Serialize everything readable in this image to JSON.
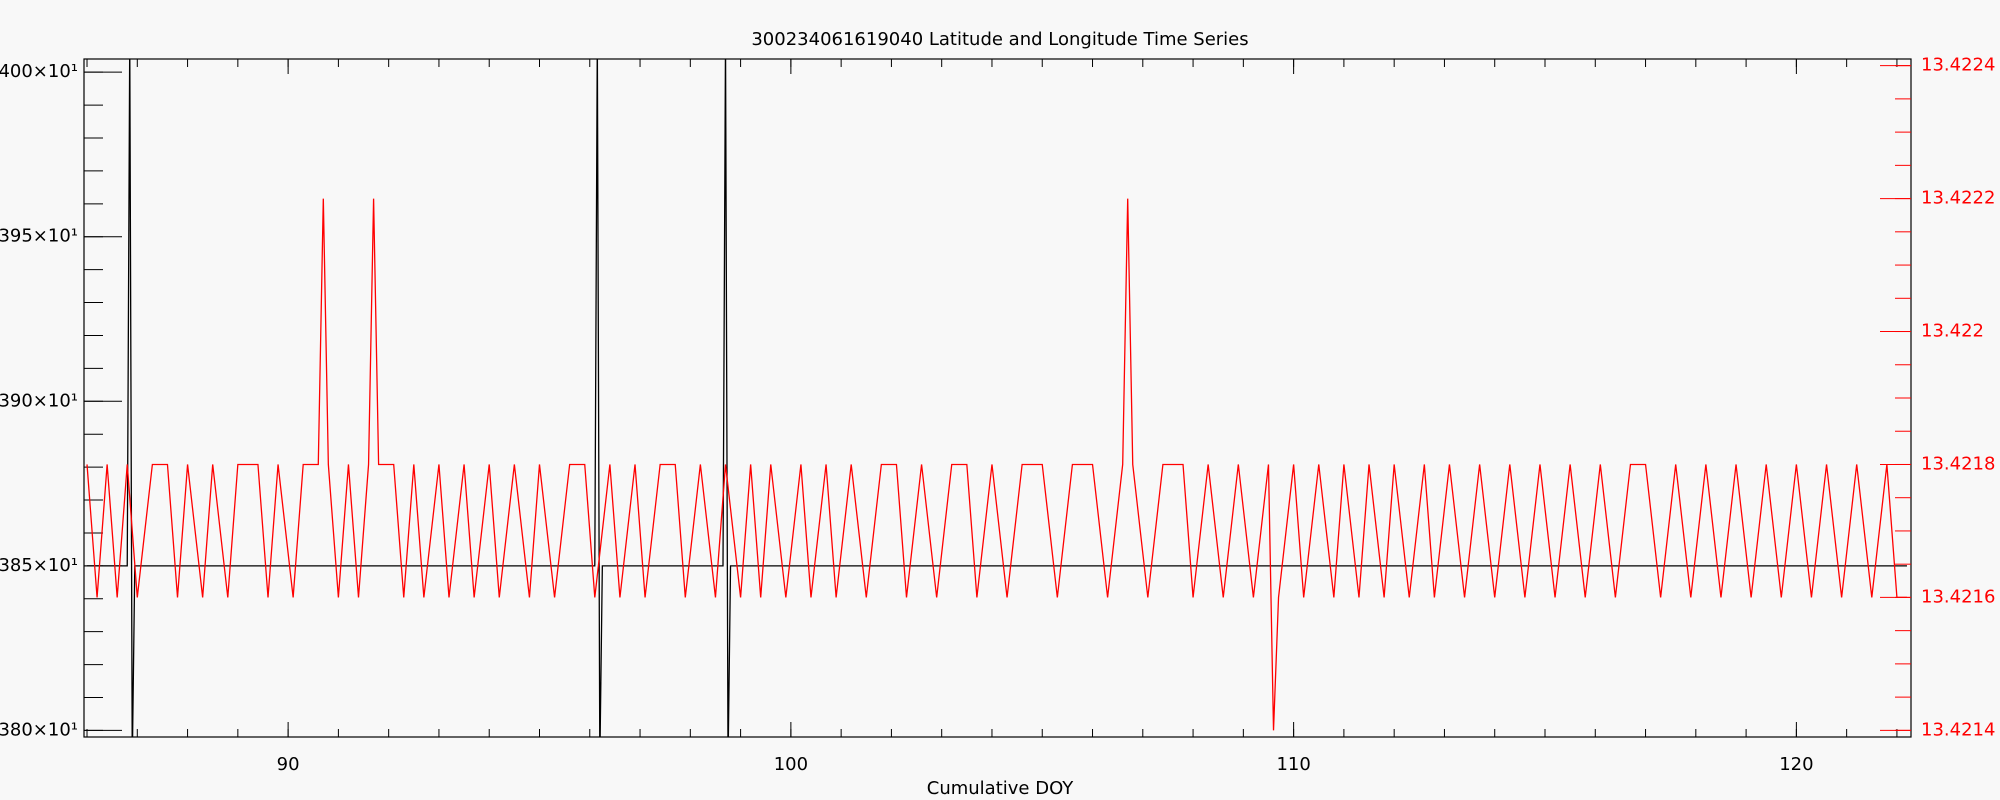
{
  "chart_data": {
    "type": "line",
    "title": "300234061619040 Latitude and Longitude Time Series",
    "x_label": "Cumulative DOY",
    "xlim": [
      85.94,
      122.28
    ],
    "xticks": [
      90,
      100,
      110,
      120
    ],
    "ylim": [
      3798,
      4004
    ],
    "yticks": [
      {
        "value": 4000,
        "label": "400×10¹"
      },
      {
        "value": 3950,
        "label": "395×10¹"
      },
      {
        "value": 3900,
        "label": "390×10¹"
      },
      {
        "value": 3850,
        "label": "385×10¹"
      },
      {
        "value": 3800,
        "label": "380×10¹"
      }
    ],
    "y2lim": [
      13.42139,
      13.42241
    ],
    "y2ticks": [
      13.4224,
      13.4222,
      13.422,
      13.4218,
      13.4216,
      13.4214
    ],
    "y2_color": "#ff0000",
    "series": [
      {
        "color": "#000000",
        "x": [
          86.0,
          86.8,
          86.85,
          86.9,
          86.95,
          96.1,
          96.15,
          96.2,
          96.25,
          98.65,
          98.7,
          98.75,
          98.8,
          122.2
        ],
        "values": [
          3850,
          3850,
          4010,
          3790,
          3850,
          3850,
          4010,
          3790,
          3850,
          3850,
          4010,
          3790,
          3850,
          3850
        ]
      },
      {
        "color": "#ff0000",
        "axis": "y2",
        "x": [
          86.0,
          86.2,
          86.4,
          86.6,
          86.8,
          87.0,
          87.3,
          87.6,
          87.8,
          88.0,
          88.3,
          88.5,
          88.8,
          89.0,
          89.4,
          89.6,
          89.8,
          90.1,
          90.3,
          90.6,
          90.7,
          90.8,
          91.0,
          91.2,
          91.4,
          91.6,
          91.7,
          91.8,
          92.1,
          92.3,
          92.5,
          92.7,
          93.0,
          93.2,
          93.5,
          93.7,
          94.0,
          94.2,
          94.5,
          94.8,
          95.0,
          95.3,
          95.6,
          95.9,
          96.1,
          96.4,
          96.6,
          96.9,
          97.1,
          97.4,
          97.7,
          97.9,
          98.2,
          98.5,
          98.7,
          99.0,
          99.2,
          99.4,
          99.6,
          99.9,
          100.2,
          100.4,
          100.7,
          100.9,
          101.2,
          101.5,
          101.8,
          102.1,
          102.3,
          102.6,
          102.9,
          103.2,
          103.5,
          103.7,
          104.0,
          104.3,
          104.6,
          105.0,
          105.3,
          105.6,
          106.0,
          106.3,
          106.6,
          106.7,
          106.8,
          107.1,
          107.4,
          107.8,
          108.0,
          108.3,
          108.6,
          108.9,
          109.2,
          109.5,
          109.6,
          109.7,
          110.0,
          110.2,
          110.5,
          110.8,
          111.0,
          111.3,
          111.5,
          111.8,
          112.0,
          112.3,
          112.6,
          112.8,
          113.1,
          113.4,
          113.7,
          114.0,
          114.3,
          114.6,
          114.9,
          115.2,
          115.5,
          115.8,
          116.1,
          116.4,
          116.7,
          117.0,
          117.3,
          117.6,
          117.9,
          118.2,
          118.5,
          118.8,
          119.1,
          119.4,
          119.7,
          120.0,
          120.3,
          120.6,
          120.9,
          121.2,
          121.5,
          121.8,
          122.0,
          122.2
        ],
        "values": [
          13.4218,
          13.4216,
          13.4218,
          13.4216,
          13.4218,
          13.4216,
          13.4218,
          13.4218,
          13.4216,
          13.4218,
          13.4216,
          13.4218,
          13.4216,
          13.4218,
          13.4218,
          13.4216,
          13.4218,
          13.4216,
          13.4218,
          13.4218,
          13.4222,
          13.4218,
          13.4216,
          13.4218,
          13.4216,
          13.4218,
          13.4222,
          13.4218,
          13.4218,
          13.4216,
          13.4218,
          13.4216,
          13.4218,
          13.4216,
          13.4218,
          13.4216,
          13.4218,
          13.4216,
          13.4218,
          13.4216,
          13.4218,
          13.4216,
          13.4218,
          13.4218,
          13.4216,
          13.4218,
          13.4216,
          13.4218,
          13.4216,
          13.4218,
          13.4218,
          13.4216,
          13.4218,
          13.4216,
          13.4218,
          13.4216,
          13.4218,
          13.4216,
          13.4218,
          13.4216,
          13.4218,
          13.4216,
          13.4218,
          13.4216,
          13.4218,
          13.4216,
          13.4218,
          13.4218,
          13.4216,
          13.4218,
          13.4216,
          13.4218,
          13.4218,
          13.4216,
          13.4218,
          13.4216,
          13.4218,
          13.4218,
          13.4216,
          13.4218,
          13.4218,
          13.4216,
          13.4218,
          13.4222,
          13.4218,
          13.4216,
          13.4218,
          13.4218,
          13.4216,
          13.4218,
          13.4216,
          13.4218,
          13.4216,
          13.4218,
          13.4214,
          13.4216,
          13.4218,
          13.4216,
          13.4218,
          13.4216,
          13.4218,
          13.4216,
          13.4218,
          13.4216,
          13.4218,
          13.4216,
          13.4218,
          13.4216,
          13.4218,
          13.4216,
          13.4218,
          13.4216,
          13.4218,
          13.4216,
          13.4218,
          13.4216,
          13.4218,
          13.4216,
          13.4218,
          13.4216,
          13.4218,
          13.4218,
          13.4216,
          13.4218,
          13.4216,
          13.4218,
          13.4216,
          13.4218,
          13.4216,
          13.4218,
          13.4216,
          13.4218,
          13.4216,
          13.4218,
          13.4216,
          13.4218,
          13.4216,
          13.4218,
          13.4216,
          13.4216
        ]
      }
    ]
  }
}
